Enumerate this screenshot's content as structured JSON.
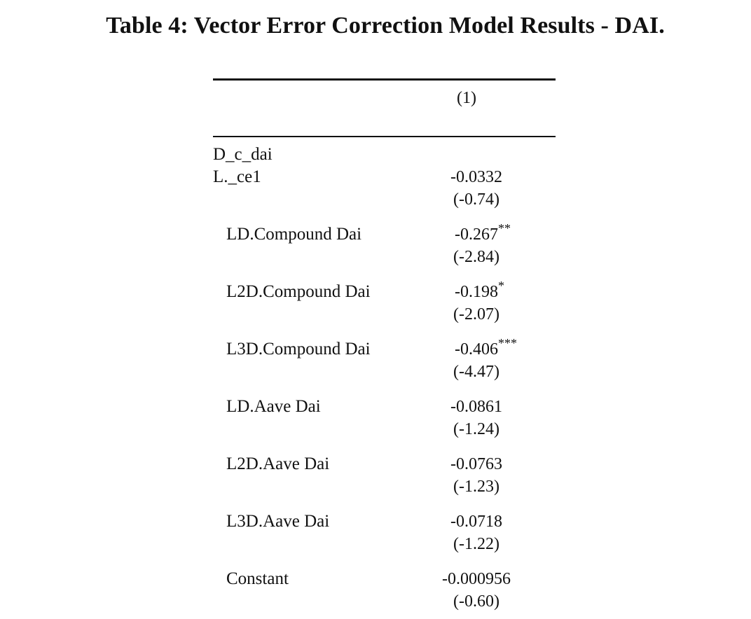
{
  "title": "Table 4: Vector Error Correction Model Results - DAI.",
  "table": {
    "column_header": "(1)",
    "group_label": "D_c_dai",
    "rows": [
      {
        "label": "L._ce1",
        "coef": "-0.0332",
        "stars": "",
        "stat": "(-0.74)"
      },
      {
        "label": "LD.Compound Dai",
        "coef": "-0.267",
        "stars": "**",
        "stat": "(-2.84)"
      },
      {
        "label": "L2D.Compound Dai",
        "coef": "-0.198",
        "stars": "*",
        "stat": "(-2.07)"
      },
      {
        "label": "L3D.Compound Dai",
        "coef": "-0.406",
        "stars": "***",
        "stat": "(-4.47)"
      },
      {
        "label": "LD.Aave Dai",
        "coef": "-0.0861",
        "stars": "",
        "stat": "(-1.24)"
      },
      {
        "label": "L2D.Aave Dai",
        "coef": "-0.0763",
        "stars": "",
        "stat": "(-1.23)"
      },
      {
        "label": "L3D.Aave Dai",
        "coef": "-0.0718",
        "stars": "",
        "stat": "(-1.22)"
      },
      {
        "label": "Constant",
        "coef": "-0.000956",
        "stars": "",
        "stat": "(-0.60)"
      }
    ]
  }
}
